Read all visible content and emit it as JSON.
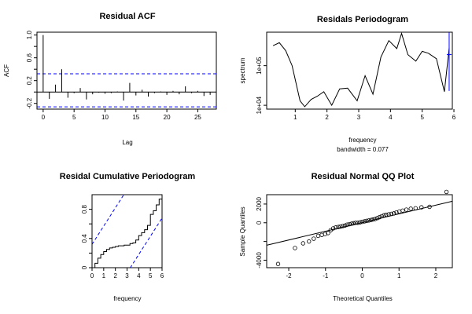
{
  "chart_data": [
    {
      "type": "bar",
      "title": "Residual ACF",
      "xlabel": "Lag",
      "ylabel": "ACF",
      "xlim": [
        -1,
        28
      ],
      "ylim": [
        -0.3,
        1.05
      ],
      "xticks": [
        0,
        5,
        10,
        15,
        20,
        25
      ],
      "yticks": [
        -0.2,
        0.2,
        0.6,
        1.0
      ],
      "ytick_labels": [
        "-0.2",
        "0.2",
        "0.6",
        "1.0"
      ],
      "yticks_minor": [
        0.0,
        0.4,
        0.8
      ],
      "lags": [
        0,
        1,
        2,
        3,
        4,
        5,
        6,
        7,
        8,
        9,
        10,
        11,
        12,
        13,
        14,
        15,
        16,
        17,
        18,
        19,
        20,
        21,
        22,
        23,
        24,
        25,
        26,
        27
      ],
      "values": [
        1.0,
        -0.12,
        0.13,
        0.4,
        -0.1,
        -0.02,
        0.07,
        -0.13,
        -0.04,
        -0.01,
        -0.03,
        -0.02,
        0.01,
        -0.15,
        0.16,
        -0.06,
        0.04,
        -0.08,
        -0.02,
        0.01,
        -0.05,
        0.02,
        -0.04,
        0.1,
        -0.02,
        0.02,
        -0.07,
        -0.05
      ],
      "confidence_bounds": [
        0.32,
        -0.26
      ]
    },
    {
      "type": "line",
      "title": "Residals Periodogram",
      "xlabel": "frequency",
      "ylabel": "spectrum",
      "subtitle": "bandwidth = 0.077",
      "log_y": true,
      "xlim": [
        0.1,
        5.95
      ],
      "ylim": [
        8000,
        700000
      ],
      "xticks": [
        1,
        2,
        3,
        4,
        5,
        6
      ],
      "yticks": [
        10000,
        100000
      ],
      "ytick_labels": [
        "1e+04",
        "1e+05"
      ],
      "x": [
        0.3,
        0.5,
        0.7,
        0.9,
        1.15,
        1.3,
        1.5,
        1.7,
        1.9,
        2.15,
        2.4,
        2.65,
        2.95,
        3.2,
        3.45,
        3.7,
        3.95,
        4.2,
        4.35,
        4.55,
        4.8,
        5.0,
        5.2,
        5.45,
        5.7,
        5.85
      ],
      "y": [
        320000,
        380000,
        240000,
        100000,
        13000,
        9200,
        14000,
        17000,
        22000,
        10000,
        26000,
        27000,
        13000,
        56000,
        19000,
        165000,
        430000,
        270000,
        650000,
        190000,
        130000,
        230000,
        205000,
        150000,
        22000,
        280000
      ],
      "bandwidth_marker": {
        "x": 5.85,
        "y_center": 190000,
        "y_low": 23000,
        "y_high": 690000
      }
    },
    {
      "type": "line",
      "title": "Residal Cumulative Periodogram",
      "xlabel": "frequency",
      "xlim": [
        0,
        6
      ],
      "ylim": [
        0,
        1
      ],
      "xticks": [
        0,
        1,
        2,
        3,
        4,
        5,
        6
      ],
      "yticks": [
        0.0,
        0.4,
        0.8
      ],
      "yticks_minor": [
        0.2,
        0.6
      ],
      "x": [
        0,
        0.25,
        0.5,
        0.75,
        1.0,
        1.25,
        1.5,
        1.75,
        2.0,
        2.25,
        2.5,
        2.75,
        3.0,
        3.25,
        3.5,
        3.75,
        4.0,
        4.25,
        4.5,
        4.75,
        5.0,
        5.25,
        5.5,
        5.75,
        6.0
      ],
      "y": [
        0.0,
        0.06,
        0.13,
        0.18,
        0.22,
        0.25,
        0.27,
        0.28,
        0.29,
        0.3,
        0.3,
        0.31,
        0.31,
        0.33,
        0.34,
        0.38,
        0.44,
        0.48,
        0.52,
        0.58,
        0.73,
        0.78,
        0.86,
        0.94,
        1.0
      ],
      "bands": [
        {
          "x": [
            0,
            4
          ],
          "y": [
            0.32,
            1.32
          ]
        },
        {
          "x": [
            2,
            6
          ],
          "y": [
            -0.32,
            0.68
          ]
        }
      ]
    },
    {
      "type": "scatter",
      "title": "Residual Normal QQ Plot",
      "xlabel": "Theoretical Quantiles",
      "ylabel": "Sample Quantiles",
      "xlim": [
        -2.6,
        2.45
      ],
      "ylim": [
        -4800,
        3000
      ],
      "xticks": [
        -2,
        -1,
        0,
        1,
        2
      ],
      "yticks": [
        -4000,
        0,
        2000
      ],
      "ytick_labels": [
        "-4000",
        "0",
        "2000"
      ],
      "yticks_minor": [
        -2000
      ],
      "x": [
        -2.29,
        -1.83,
        -1.61,
        -1.45,
        -1.32,
        -1.2,
        -1.1,
        -1.01,
        -0.93,
        -0.86,
        -0.79,
        -0.72,
        -0.65,
        -0.59,
        -0.53,
        -0.47,
        -0.41,
        -0.35,
        -0.29,
        -0.24,
        -0.18,
        -0.12,
        -0.06,
        0.0,
        0.06,
        0.12,
        0.18,
        0.24,
        0.29,
        0.35,
        0.41,
        0.47,
        0.53,
        0.59,
        0.65,
        0.72,
        0.79,
        0.86,
        0.93,
        1.01,
        1.1,
        1.2,
        1.32,
        1.45,
        1.61,
        1.83,
        2.29
      ],
      "y": [
        -4400,
        -2700,
        -2200,
        -2000,
        -1700,
        -1400,
        -1300,
        -1200,
        -1100,
        -800,
        -600,
        -500,
        -450,
        -400,
        -350,
        -300,
        -200,
        -150,
        -100,
        -50,
        0,
        0,
        50,
        100,
        150,
        200,
        250,
        300,
        350,
        400,
        500,
        600,
        700,
        800,
        850,
        900,
        950,
        1000,
        1100,
        1200,
        1300,
        1400,
        1500,
        1550,
        1650,
        1700,
        3300
      ],
      "reference_line": {
        "x": [
          -2.6,
          2.45
        ],
        "y": [
          -2400,
          2300
        ]
      }
    }
  ]
}
